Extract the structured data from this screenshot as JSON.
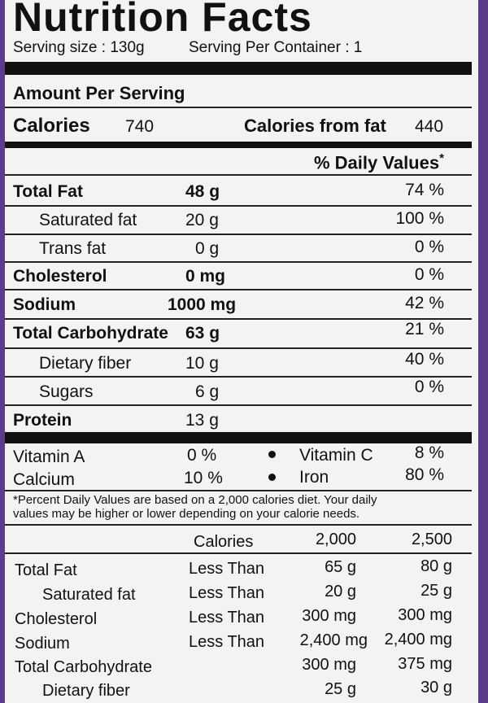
{
  "header": {
    "title": "Nutrition Facts",
    "serving_size": "Serving size : 130g",
    "servings_per_container": "Serving Per Container : 1"
  },
  "calories_section": {
    "amount_per_serving": "Amount Per Serving",
    "calories_label": "Calories",
    "calories_value": "740",
    "from_fat_label": "Calories from fat",
    "from_fat_value": "440",
    "daily_values_header": "% Daily Values",
    "daily_values_asterisk": "*"
  },
  "nutrients": [
    {
      "label": "Total Fat",
      "amount": "48 g",
      "dv": "74 %"
    },
    {
      "label": "Saturated fat",
      "amount": "20 g",
      "dv": "100 %"
    },
    {
      "label": "Trans fat",
      "amount": "0 g",
      "dv": "0 %"
    },
    {
      "label": "Cholesterol",
      "amount": "0 mg",
      "dv": "0 %"
    },
    {
      "label": "Sodium",
      "amount": "1000 mg",
      "dv": "42 %"
    },
    {
      "label": "Total Carbohydrate",
      "amount": "63 g",
      "dv": "21 %"
    },
    {
      "label": "Dietary fiber",
      "amount": "10 g",
      "dv": "40 %"
    },
    {
      "label": "Sugars",
      "amount": "6 g",
      "dv": "0 %"
    },
    {
      "label": "Protein",
      "amount": "13 g",
      "dv": ""
    }
  ],
  "vitamins": [
    {
      "label": "Vitamin A",
      "value": "0 %"
    },
    {
      "label": "Vitamin C",
      "value": "8 %"
    },
    {
      "label": "Calcium",
      "value": "10 %"
    },
    {
      "label": "Iron",
      "value": "80 %"
    }
  ],
  "footnote": {
    "line1": "*Percent Daily Values are based on a 2,000 calories diet. Your daily",
    "line2": "values may be higher or lower depending on your calorie needs."
  },
  "reference_table": {
    "header": [
      "Calories",
      "2,000",
      "2,500"
    ],
    "rows": [
      {
        "label": "Total Fat",
        "limit": "Less Than",
        "v2000": "65 g",
        "v2500": "80 g"
      },
      {
        "label": "Saturated fat",
        "limit": "Less Than",
        "v2000": "20 g",
        "v2500": "25 g"
      },
      {
        "label": "Cholesterol",
        "limit": "Less Than",
        "v2000": "300 mg",
        "v2500": "300 mg"
      },
      {
        "label": "Sodium",
        "limit": "Less Than",
        "v2000": "2,400 mg",
        "v2500": "2,400 mg"
      },
      {
        "label": "Total Carbohydrate",
        "limit": "",
        "v2000": "300 mg",
        "v2500": "375 mg"
      },
      {
        "label": "Dietary fiber",
        "limit": "",
        "v2000": "25 g",
        "v2500": "30 g"
      }
    ]
  }
}
